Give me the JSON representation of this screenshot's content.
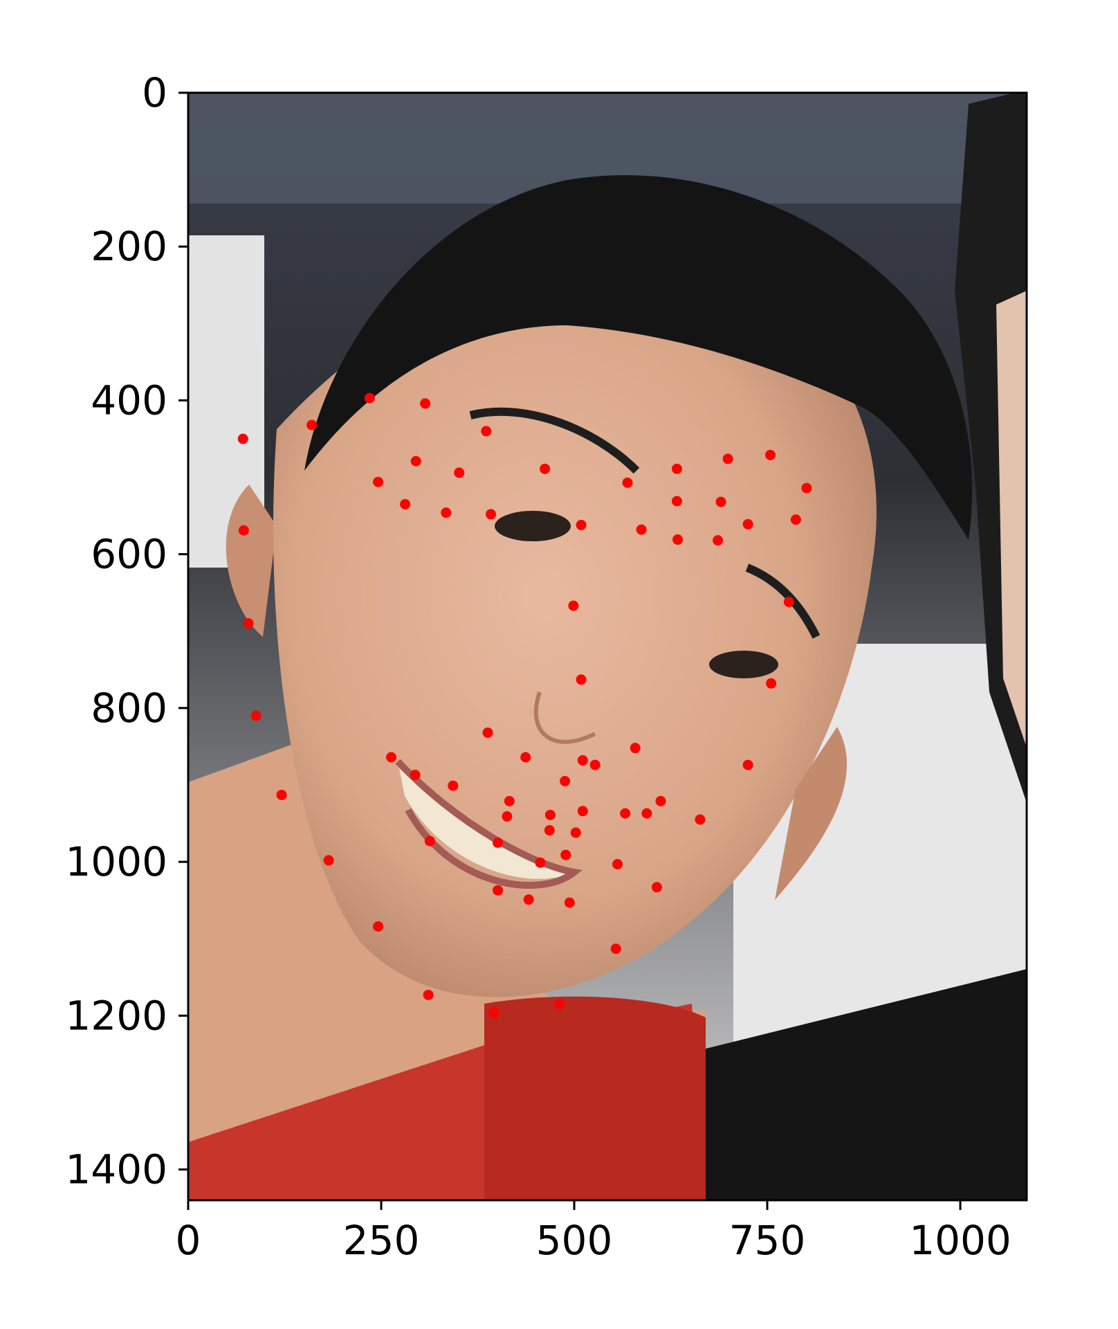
{
  "chart_data": {
    "type": "scatter",
    "title": "",
    "xlabel": "",
    "ylabel": "",
    "xlim": [
      0,
      1086
    ],
    "ylim": [
      1440,
      0
    ],
    "y_inverted": true,
    "grid": false,
    "legend": "none",
    "background_image": "face-photo",
    "xticks": [
      0,
      250,
      500,
      750,
      1000
    ],
    "yticks": [
      0,
      200,
      400,
      600,
      800,
      1000,
      1200,
      1400
    ],
    "xtick_labels": [
      "0",
      "250",
      "500",
      "750",
      "1000"
    ],
    "ytick_labels": [
      "0",
      "200",
      "400",
      "600",
      "800",
      "1000",
      "1200",
      "1400"
    ],
    "series": [
      {
        "color": "#ff0000",
        "points": [
          [
            235,
            397
          ],
          [
            307,
            404
          ],
          [
            160,
            432
          ],
          [
            71,
            450
          ],
          [
            386,
            440
          ],
          [
            295,
            479
          ],
          [
            351,
            494
          ],
          [
            246,
            506
          ],
          [
            281,
            535
          ],
          [
            334,
            546
          ],
          [
            392,
            548
          ],
          [
            462,
            489
          ],
          [
            569,
            507
          ],
          [
            633,
            489
          ],
          [
            699,
            476
          ],
          [
            754,
            471
          ],
          [
            801,
            514
          ],
          [
            633,
            531
          ],
          [
            690,
            532
          ],
          [
            787,
            555
          ],
          [
            509,
            562
          ],
          [
            587,
            568
          ],
          [
            634,
            581
          ],
          [
            686,
            582
          ],
          [
            725,
            561
          ],
          [
            72,
            569
          ],
          [
            499,
            667
          ],
          [
            778,
            662
          ],
          [
            78,
            690
          ],
          [
            509,
            763
          ],
          [
            755,
            768
          ],
          [
            88,
            810
          ],
          [
            388,
            832
          ],
          [
            579,
            852
          ],
          [
            263,
            864
          ],
          [
            437,
            864
          ],
          [
            511,
            868
          ],
          [
            527,
            874
          ],
          [
            725,
            874
          ],
          [
            294,
            887
          ],
          [
            488,
            895
          ],
          [
            343,
            901
          ],
          [
            121,
            913
          ],
          [
            416,
            921
          ],
          [
            612,
            921
          ],
          [
            566,
            937
          ],
          [
            594,
            937
          ],
          [
            469,
            939
          ],
          [
            511,
            934
          ],
          [
            413,
            941
          ],
          [
            663,
            945
          ],
          [
            468,
            959
          ],
          [
            502,
            962
          ],
          [
            313,
            973
          ],
          [
            401,
            975
          ],
          [
            489,
            991
          ],
          [
            182,
            998
          ],
          [
            456,
            1001
          ],
          [
            556,
            1003
          ],
          [
            607,
            1033
          ],
          [
            401,
            1037
          ],
          [
            441,
            1049
          ],
          [
            494,
            1053
          ],
          [
            246,
            1084
          ],
          [
            554,
            1113
          ],
          [
            311,
            1173
          ],
          [
            481,
            1185
          ],
          [
            396,
            1196
          ]
        ]
      }
    ]
  }
}
